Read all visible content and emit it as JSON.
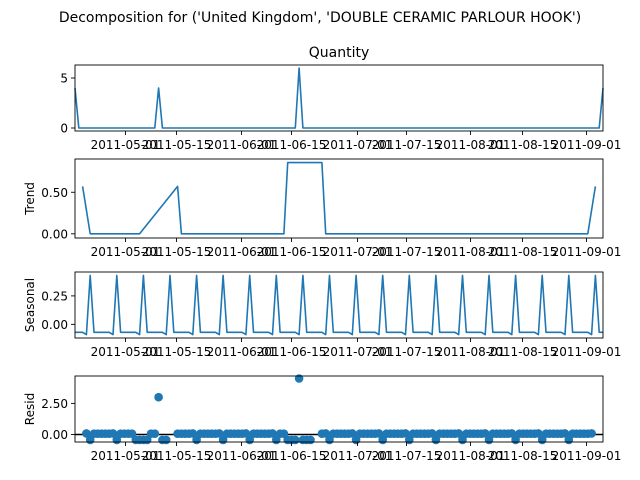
{
  "suptitle": "Decomposition for ('United Kingdom', 'DOUBLE CERAMIC PARLOUR HOOK')",
  "colors": {
    "line": "#1f77b4",
    "marker": "#1f77b4",
    "zero_line": "#000000",
    "axes": "#000000"
  },
  "chart_data": [
    {
      "type": "line",
      "title": "Quantity",
      "ylabel": "",
      "xlabel": "",
      "ylim": [
        -0.3,
        6.3
      ],
      "yticks": [
        0,
        5
      ],
      "xlim": [
        "2011-04-23",
        "2011-09-09"
      ],
      "x_tick_labels": [
        "2011-05-01",
        "2011-05-15",
        "2011-06-01",
        "2011-06-15",
        "2011-07-01",
        "2011-07-15",
        "2011-08-01",
        "2011-08-15",
        "2011-09-01"
      ],
      "x_tick_note": "adjacent tick labels overlap in the original; 05-01/05-15, 06-01/06-15, 07-01/07-15, 08-01/08-15 collide",
      "series": [
        {
          "x": [
            "2011-04-23",
            "2011-04-24",
            "2011-05-14",
            "2011-05-15",
            "2011-05-16",
            "2011-06-20",
            "2011-06-21",
            "2011-06-22",
            "2011-09-08",
            "2011-09-09"
          ],
          "y": [
            4,
            0,
            0,
            4,
            0,
            0,
            6,
            0,
            0,
            4
          ]
        }
      ]
    },
    {
      "type": "line",
      "title": "",
      "ylabel": "Trend",
      "xlabel": "",
      "ylim": [
        -0.05,
        0.9
      ],
      "yticks": [
        0.0,
        0.5
      ],
      "xlim": [
        "2011-04-23",
        "2011-09-09"
      ],
      "x_tick_labels": [
        "2011-05-01",
        "2011-05-15",
        "2011-06-01",
        "2011-06-15",
        "2011-07-01",
        "2011-07-15",
        "2011-08-01",
        "2011-08-15",
        "2011-09-01"
      ],
      "series": [
        {
          "x": [
            "2011-04-25",
            "2011-04-27",
            "2011-05-10",
            "2011-05-20",
            "2011-05-21",
            "2011-06-17",
            "2011-06-18",
            "2011-06-27",
            "2011-06-28",
            "2011-09-05",
            "2011-09-07"
          ],
          "y": [
            0.57,
            0,
            0,
            0.57,
            0,
            0,
            0.857,
            0.857,
            0,
            0,
            0.57
          ]
        }
      ]
    },
    {
      "type": "line",
      "title": "",
      "ylabel": "Seasonal",
      "xlabel": "",
      "ylim": [
        -0.12,
        0.46
      ],
      "yticks": [
        0.0,
        0.25
      ],
      "xlim": [
        "2011-04-23",
        "2011-09-09"
      ],
      "x_tick_labels": [
        "2011-05-01",
        "2011-05-15",
        "2011-06-01",
        "2011-06-15",
        "2011-07-01",
        "2011-07-15",
        "2011-08-01",
        "2011-08-15",
        "2011-09-01"
      ],
      "series": [
        {
          "period_days": 7,
          "cycle_start": "2011-04-23",
          "cycle_values": [
            -0.07,
            -0.07,
            -0.07,
            -0.09,
            0.43,
            -0.07,
            -0.07
          ]
        }
      ]
    },
    {
      "type": "scatter",
      "title": "",
      "ylabel": "Resid",
      "xlabel": "",
      "ylim": [
        -0.6,
        4.7
      ],
      "yticks": [
        0.0,
        2.5
      ],
      "zero_line": true,
      "xlim": [
        "2011-04-23",
        "2011-09-09"
      ],
      "x_tick_labels": [
        "2011-05-01",
        "2011-05-15",
        "2011-06-01",
        "2011-06-15",
        "2011-07-01",
        "2011-07-15",
        "2011-08-01",
        "2011-08-15",
        "2011-09-01"
      ],
      "series": [
        {
          "first_date": "2011-04-26",
          "last_date": "2011-09-06",
          "period_days": 7,
          "cycle_values": [
            0.07,
            0.07,
            0.07,
            0.09,
            -0.43,
            0.07,
            0.07
          ],
          "overrides": [
            {
              "x": "2011-05-09",
              "y": -0.43
            },
            {
              "x": "2011-05-10",
              "y": -0.43
            },
            {
              "x": "2011-05-11",
              "y": -0.43
            },
            {
              "x": "2011-05-12",
              "y": -0.43
            },
            {
              "x": "2011-05-15",
              "y": 3.0
            },
            {
              "x": "2011-05-16",
              "y": -0.43
            },
            {
              "x": "2011-05-17",
              "y": -0.43
            },
            {
              "x": "2011-06-18",
              "y": -0.43
            },
            {
              "x": "2011-06-19",
              "y": -0.43
            },
            {
              "x": "2011-06-20",
              "y": -0.43
            },
            {
              "x": "2011-06-21",
              "y": 4.5
            },
            {
              "x": "2011-06-22",
              "y": -0.43
            },
            {
              "x": "2011-06-23",
              "y": -0.43
            },
            {
              "x": "2011-06-24",
              "y": -0.43
            }
          ],
          "gaps": [
            "2011-05-18",
            "2011-05-19",
            "2011-06-25",
            "2011-06-26"
          ]
        }
      ]
    }
  ]
}
